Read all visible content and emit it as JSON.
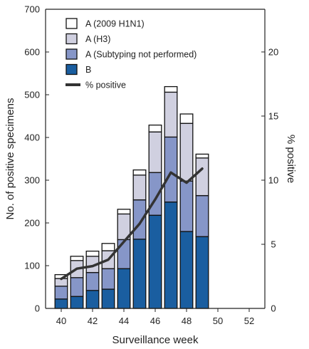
{
  "chart_data": {
    "type": "bar",
    "stacked": true,
    "x": [
      40,
      41,
      42,
      43,
      44,
      45,
      46,
      47,
      48,
      49
    ],
    "xlabel": "Surveillance week",
    "xlim": [
      39,
      53
    ],
    "xticks": [
      40,
      42,
      44,
      46,
      48,
      50,
      52
    ],
    "ylabel": "No. of positive specimens",
    "ylim": [
      0,
      700
    ],
    "yticks": [
      0,
      100,
      200,
      300,
      400,
      500,
      600,
      700
    ],
    "y2label": "% positive",
    "y2lim": [
      0,
      23.33
    ],
    "y2ticks": [
      0,
      5,
      10,
      15,
      20
    ],
    "grid": false,
    "legend_position": "top-left",
    "series": [
      {
        "name": "B",
        "color": "#1a5ea0",
        "values": [
          22,
          28,
          42,
          45,
          93,
          162,
          218,
          249,
          180,
          168
        ]
      },
      {
        "name": "A (Subtyping not performed)",
        "color": "#8696c8",
        "values": [
          30,
          44,
          42,
          48,
          68,
          92,
          100,
          152,
          118,
          96
        ]
      },
      {
        "name": "A (H3)",
        "color": "#d0d0e0",
        "values": [
          18,
          40,
          38,
          42,
          60,
          58,
          95,
          105,
          135,
          88
        ]
      },
      {
        "name": "A (2009 H1N1)",
        "color": "#ffffff",
        "values": [
          9,
          10,
          12,
          17,
          11,
          12,
          16,
          13,
          22,
          9
        ]
      }
    ],
    "line_series": {
      "name": "% positive",
      "axis": "right",
      "color": "#333333",
      "x": [
        40,
        41,
        42,
        43,
        44,
        45,
        46,
        47,
        48,
        49
      ],
      "values": [
        2.3,
        3.1,
        3.3,
        3.8,
        5.2,
        6.6,
        8.5,
        10.6,
        9.8,
        10.9
      ]
    },
    "legend_order": [
      "A (2009 H1N1)",
      "A (H3)",
      "A (Subtyping not performed)",
      "B",
      "% positive"
    ]
  }
}
